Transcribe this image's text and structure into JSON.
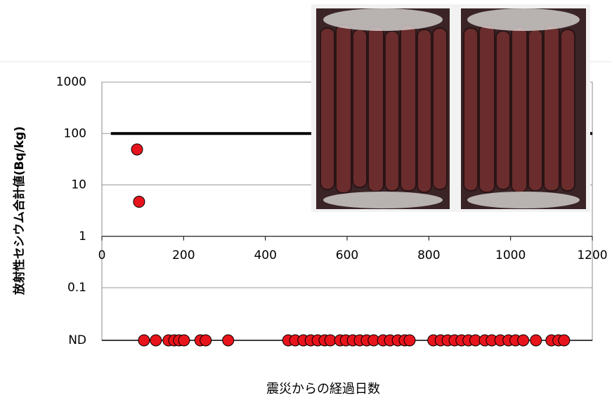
{
  "chart_data": {
    "type": "scatter",
    "y_label": "放射性セシウム合計値(Bq/kg)",
    "x_label": "震災からの経過日数",
    "log_y": true,
    "grid": true,
    "xlim": [
      0,
      1200
    ],
    "xticks": [
      0,
      200,
      400,
      600,
      800,
      1000,
      1200
    ],
    "ylim": [
      0.1,
      1000
    ],
    "yticks": [
      1000,
      100,
      10,
      1,
      0.1
    ],
    "x_axis_crosses": 1,
    "color": "#e8141b",
    "x": [
      86,
      91
    ],
    "values": [
      49,
      4.7
    ],
    "nd": {
      "label": "ND",
      "x": [
        103,
        132,
        163,
        177,
        189,
        201,
        241,
        254,
        309,
        456,
        473,
        493,
        511,
        528,
        545,
        559,
        583,
        597,
        614,
        631,
        648,
        665,
        688,
        705,
        724,
        741,
        753,
        811,
        829,
        846,
        863,
        880,
        897,
        914,
        937,
        954,
        975,
        995,
        1012,
        1031,
        1062,
        1100,
        1117,
        1131
      ]
    },
    "limit_line": {
      "y": 100,
      "x": [
        22,
        1200
      ]
    }
  }
}
